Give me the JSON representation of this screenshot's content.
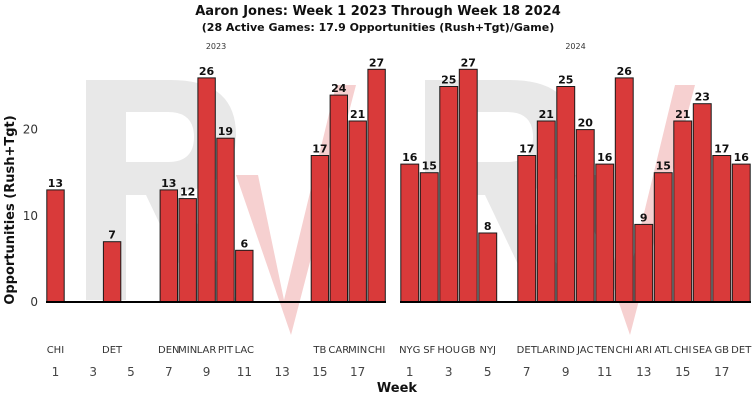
{
  "title": "Aaron Jones: Week 1 2023 Through Week 18 2024",
  "subtitle": "(28 Active Games: 17.9 Opportunities (Rush+Tgt)/Game)",
  "colors": {
    "bar_fill": "#d93a3a",
    "bar_stroke": "#1a1a1a",
    "watermark": "#e8e8e8",
    "watermark_accent": "#f6d0d0"
  },
  "chart_data": {
    "type": "bar",
    "title": "Aaron Jones: Week 1 2023 Through Week 18 2024",
    "subtitle": "(28 Active Games: 17.9 Opportunities (Rush+Tgt)/Game)",
    "xlabel": "Week",
    "ylabel": "Opportunities (Rush+Tgt)",
    "ylim": [
      0,
      28
    ],
    "y_ticks": [
      0,
      10,
      20
    ],
    "x_ticks": [
      1,
      3,
      5,
      7,
      9,
      11,
      13,
      15,
      17
    ],
    "xlim": [
      0.5,
      18.5
    ],
    "grid": false,
    "panels": [
      {
        "label": "2023",
        "bars": [
          {
            "week": 1,
            "value": 13,
            "team": "CHI"
          },
          {
            "week": 4,
            "value": 7,
            "team": "DET"
          },
          {
            "week": 7,
            "value": 13,
            "team": "DEN"
          },
          {
            "week": 8,
            "value": 12,
            "team": "MIN"
          },
          {
            "week": 9,
            "value": 26,
            "team": "LAR"
          },
          {
            "week": 10,
            "value": 19,
            "team": "PIT"
          },
          {
            "week": 11,
            "value": 6,
            "team": "LAC"
          },
          {
            "week": 15,
            "value": 17,
            "team": "TB"
          },
          {
            "week": 16,
            "value": 24,
            "team": "CAR"
          },
          {
            "week": 17,
            "value": 21,
            "team": "MIN"
          },
          {
            "week": 18,
            "value": 27,
            "team": "CHI"
          }
        ]
      },
      {
        "label": "2024",
        "bars": [
          {
            "week": 1,
            "value": 16,
            "team": "NYG"
          },
          {
            "week": 2,
            "value": 15,
            "team": "SF"
          },
          {
            "week": 3,
            "value": 25,
            "team": "HOU"
          },
          {
            "week": 4,
            "value": 27,
            "team": "GB"
          },
          {
            "week": 5,
            "value": 8,
            "team": "NYJ"
          },
          {
            "week": 7,
            "value": 17,
            "team": "DET"
          },
          {
            "week": 8,
            "value": 21,
            "team": "LAR"
          },
          {
            "week": 9,
            "value": 25,
            "team": "IND"
          },
          {
            "week": 10,
            "value": 20,
            "team": "JAC"
          },
          {
            "week": 11,
            "value": 16,
            "team": "TEN"
          },
          {
            "week": 12,
            "value": 26,
            "team": "CHI"
          },
          {
            "week": 13,
            "value": 9,
            "team": "ARI"
          },
          {
            "week": 14,
            "value": 15,
            "team": "ATL"
          },
          {
            "week": 15,
            "value": 21,
            "team": "CHI"
          },
          {
            "week": 16,
            "value": 23,
            "team": "SEA"
          },
          {
            "week": 17,
            "value": 17,
            "team": "GB"
          },
          {
            "week": 18,
            "value": 16,
            "team": "DET"
          }
        ]
      }
    ]
  }
}
